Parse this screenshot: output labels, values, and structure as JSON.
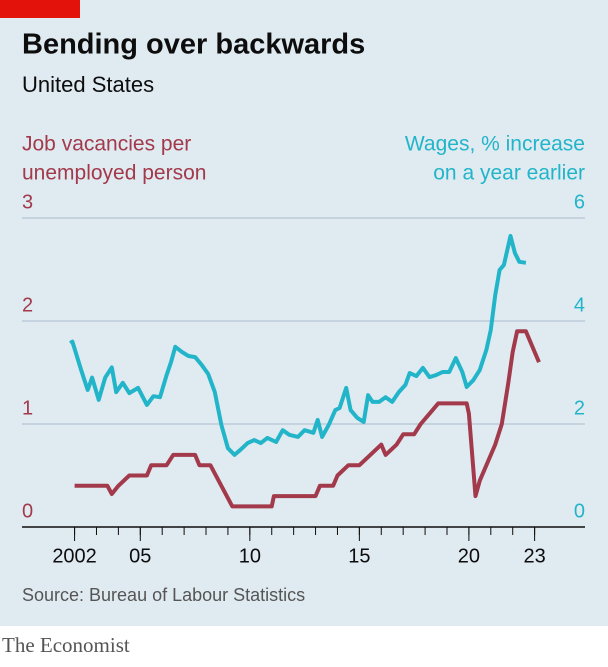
{
  "chart_data": {
    "type": "line",
    "title": "Bending over backwards",
    "subtitle": "United States",
    "ylabel": [
      "Job vacancies per",
      "unemployed person"
    ],
    "y2label": [
      "Wages, % increase",
      "on a year earlier"
    ],
    "source": "Source: Bureau of Labour Statistics",
    "xlim": [
      1999.6,
      2025.3
    ],
    "xticks": [
      {
        "value": 2002,
        "label": "2002"
      },
      {
        "value": 2005,
        "label": "05"
      },
      {
        "value": 2010,
        "label": "10"
      },
      {
        "value": 2015,
        "label": "15"
      },
      {
        "value": 2020,
        "label": "20"
      },
      {
        "value": 2023,
        "label": "23"
      }
    ],
    "xminorticks": [
      2002,
      2003,
      2004,
      2005,
      2006,
      2007,
      2008,
      2009,
      2010,
      2011,
      2012,
      2013,
      2014,
      2015,
      2016,
      2017,
      2018,
      2019,
      2020,
      2021,
      2022,
      2023
    ],
    "ylim": [
      0,
      3
    ],
    "yticks": [
      0,
      1,
      2,
      3
    ],
    "ytick_color": "#a23a4b",
    "y2lim": [
      0,
      6
    ],
    "y2ticks": [
      0,
      2,
      4,
      6
    ],
    "y2tick_color": "#22b5c9",
    "grid": true,
    "series": [
      {
        "name": "Job vacancies per unemployed person",
        "color": "#a23a4b",
        "x": [
          2002,
          2003.5,
          2003.7,
          2004,
          2004.5,
          2005.3,
          2005.5,
          2006.2,
          2006.5,
          2007.5,
          2007.7,
          2008.2,
          2009.2,
          2011,
          2011.1,
          2013,
          2013.2,
          2013.8,
          2014,
          2014.5,
          2015,
          2015.5,
          2016,
          2016.2,
          2016.7,
          2017,
          2017.5,
          2017.8,
          2018.2,
          2018.6,
          2019.9,
          2020.0,
          2020.3,
          2020.5,
          2020.8,
          2021.2,
          2021.5,
          2021.8,
          2022,
          2022.2,
          2022.6,
          2023,
          2023.2
        ],
        "values": [
          0.4,
          0.4,
          0.32,
          0.4,
          0.5,
          0.5,
          0.6,
          0.6,
          0.7,
          0.7,
          0.6,
          0.6,
          0.2,
          0.2,
          0.3,
          0.3,
          0.4,
          0.4,
          0.5,
          0.6,
          0.6,
          0.7,
          0.8,
          0.7,
          0.8,
          0.9,
          0.9,
          1.0,
          1.1,
          1.2,
          1.2,
          1.1,
          0.3,
          0.45,
          0.6,
          0.8,
          1.0,
          1.4,
          1.7,
          1.9,
          1.9,
          1.7,
          1.6
        ]
      },
      {
        "name": "Wages, % increase on a year earlier",
        "color": "#22b5c9",
        "axis": "y2",
        "x": [
          2001.8,
          2001.9,
          2002.3,
          2002.6,
          2002.8,
          2003.1,
          2003.4,
          2003.7,
          2003.9,
          2004.2,
          2004.5,
          2004.9,
          2005.3,
          2005.6,
          2005.9,
          2006.2,
          2006.4,
          2006.6,
          2006.9,
          2007.2,
          2007.5,
          2007.8,
          2008.1,
          2008.4,
          2008.7,
          2009.0,
          2009.3,
          2009.6,
          2009.9,
          2010.2,
          2010.5,
          2010.8,
          2011.2,
          2011.5,
          2011.8,
          2012.2,
          2012.5,
          2012.9,
          2013.1,
          2013.3,
          2013.6,
          2013.9,
          2014.1,
          2014.4,
          2014.6,
          2014.9,
          2015.2,
          2015.4,
          2015.6,
          2015.9,
          2016.2,
          2016.5,
          2016.8,
          2017.1,
          2017.3,
          2017.6,
          2017.9,
          2018.2,
          2018.5,
          2018.8,
          2019.1,
          2019.4,
          2019.7,
          2019.9,
          2020.2,
          2020.5,
          2020.8,
          2021.0,
          2021.2,
          2021.4,
          2021.6,
          2021.9,
          2022.1,
          2022.3,
          2022.6
        ],
        "values": [
          3.57,
          3.6,
          3.05,
          2.66,
          2.9,
          2.47,
          2.9,
          3.1,
          2.62,
          2.8,
          2.6,
          2.7,
          2.37,
          2.54,
          2.52,
          2.95,
          3.2,
          3.5,
          3.4,
          3.32,
          3.3,
          3.15,
          2.97,
          2.62,
          1.98,
          1.53,
          1.4,
          1.51,
          1.63,
          1.69,
          1.63,
          1.73,
          1.65,
          1.88,
          1.79,
          1.75,
          1.88,
          1.83,
          2.08,
          1.75,
          1.98,
          2.27,
          2.31,
          2.7,
          2.27,
          2.12,
          2.04,
          2.56,
          2.43,
          2.43,
          2.52,
          2.43,
          2.62,
          2.76,
          2.99,
          2.93,
          3.09,
          2.91,
          2.95,
          3.01,
          3.01,
          3.28,
          3.01,
          2.72,
          2.85,
          3.05,
          3.44,
          3.83,
          4.5,
          4.99,
          5.09,
          5.65,
          5.32,
          5.15,
          5.13
        ]
      }
    ]
  },
  "brand": "The Economist"
}
